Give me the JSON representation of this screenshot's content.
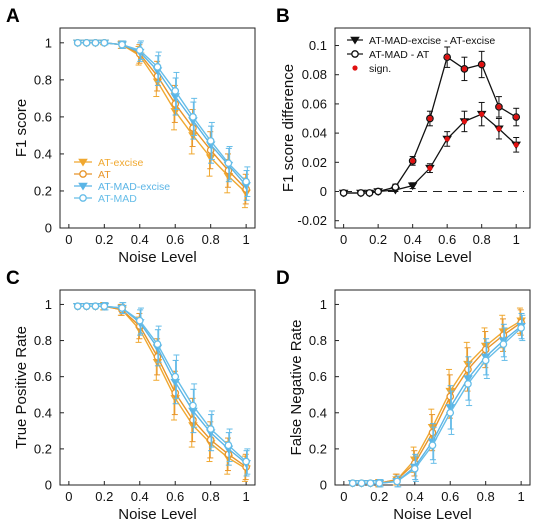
{
  "colors": {
    "excise": "#f0a830",
    "at": "#e8952a",
    "madexcise": "#5bb5e6",
    "mad": "#66bde8",
    "diff": "#111111",
    "sign": "#e01010"
  },
  "chart_data": [
    {
      "panel": "A",
      "type": "line",
      "xlabel": "Noise Level",
      "ylabel": "F1 score",
      "xlim": [
        -0.05,
        1.05
      ],
      "ylim": [
        0,
        1.08
      ],
      "xticks": [
        "0",
        "0.2",
        "0.4",
        "0.6",
        "0.8",
        "1"
      ],
      "yticks": [
        "0",
        "0.2",
        "0.4",
        "0.6",
        "0.8",
        "1"
      ],
      "legend_position": "bottom-left",
      "x": [
        0.05,
        0.1,
        0.15,
        0.2,
        0.3,
        0.4,
        0.5,
        0.6,
        0.7,
        0.8,
        0.9,
        1.0
      ],
      "series": [
        {
          "name": "AT-excise",
          "marker": "triangle-down",
          "values": [
            1.0,
            1.0,
            1.0,
            1.0,
            0.99,
            0.93,
            0.79,
            0.63,
            0.5,
            0.38,
            0.28,
            0.19
          ],
          "err": [
            0,
            0,
            0,
            0.01,
            0.02,
            0.05,
            0.08,
            0.1,
            0.1,
            0.1,
            0.09,
            0.08
          ]
        },
        {
          "name": "AT",
          "marker": "circle",
          "values": [
            1.0,
            1.0,
            1.0,
            1.0,
            0.99,
            0.94,
            0.82,
            0.67,
            0.54,
            0.42,
            0.31,
            0.21
          ],
          "err": [
            0,
            0,
            0,
            0.01,
            0.02,
            0.05,
            0.08,
            0.1,
            0.1,
            0.1,
            0.09,
            0.08
          ]
        },
        {
          "name": "AT-MAD-excise",
          "marker": "triangle-down",
          "values": [
            1.0,
            1.0,
            1.0,
            1.0,
            0.99,
            0.95,
            0.85,
            0.71,
            0.58,
            0.45,
            0.34,
            0.23
          ],
          "err": [
            0,
            0,
            0,
            0.01,
            0.02,
            0.05,
            0.08,
            0.1,
            0.1,
            0.1,
            0.09,
            0.08
          ]
        },
        {
          "name": "AT-MAD",
          "marker": "circle",
          "values": [
            1.0,
            1.0,
            1.0,
            1.0,
            0.99,
            0.96,
            0.87,
            0.74,
            0.6,
            0.47,
            0.35,
            0.25
          ],
          "err": [
            0,
            0,
            0,
            0.01,
            0.02,
            0.05,
            0.08,
            0.1,
            0.1,
            0.1,
            0.09,
            0.08
          ]
        }
      ]
    },
    {
      "panel": "B",
      "type": "line",
      "xlabel": "Noise Level",
      "ylabel": "F1 score difference",
      "xlim": [
        -0.05,
        1.08
      ],
      "ylim": [
        -0.025,
        0.112
      ],
      "xticks": [
        "0",
        "0.2",
        "0.4",
        "0.6",
        "0.8",
        "1"
      ],
      "yticks": [
        "-0.02",
        "0",
        "0.02",
        "0.04",
        "0.06",
        "0.08",
        "0.1"
      ],
      "legend_position": "top-right",
      "reference_line": 0,
      "x": [
        0.0,
        0.1,
        0.15,
        0.2,
        0.3,
        0.4,
        0.5,
        0.6,
        0.7,
        0.8,
        0.9,
        1.0
      ],
      "series": [
        {
          "name": "AT-MAD-excise - AT-excise",
          "marker": "triangle-down",
          "values": [
            -0.001,
            -0.001,
            -0.001,
            0.0,
            0.001,
            0.004,
            0.016,
            0.036,
            0.048,
            0.053,
            0.043,
            0.032
          ],
          "err": [
            0.001,
            0.001,
            0.001,
            0.001,
            0.001,
            0.002,
            0.003,
            0.005,
            0.007,
            0.008,
            0.007,
            0.005
          ],
          "significant": [
            false,
            false,
            false,
            false,
            false,
            false,
            true,
            true,
            true,
            true,
            true,
            true
          ]
        },
        {
          "name": "AT-MAD - AT",
          "marker": "circle",
          "values": [
            -0.001,
            -0.001,
            -0.001,
            0.0,
            0.003,
            0.021,
            0.05,
            0.092,
            0.084,
            0.087,
            0.058,
            0.051
          ],
          "err": [
            0.001,
            0.001,
            0.001,
            0.001,
            0.002,
            0.003,
            0.005,
            0.007,
            0.008,
            0.009,
            0.007,
            0.006
          ],
          "significant": [
            false,
            false,
            false,
            false,
            false,
            true,
            true,
            true,
            true,
            true,
            true,
            true
          ]
        }
      ],
      "significance_label": "sign."
    },
    {
      "panel": "C",
      "type": "line",
      "xlabel": "Noise Level",
      "ylabel": "True Positive Rate",
      "xlim": [
        -0.05,
        1.05
      ],
      "ylim": [
        0,
        1.08
      ],
      "xticks": [
        "0",
        "0.2",
        "0.4",
        "0.6",
        "0.8",
        "1"
      ],
      "yticks": [
        "0",
        "0.2",
        "0.4",
        "0.6",
        "0.8",
        "1"
      ],
      "x": [
        0.05,
        0.1,
        0.15,
        0.2,
        0.3,
        0.4,
        0.5,
        0.6,
        0.7,
        0.8,
        0.9,
        1.0
      ],
      "series": [
        {
          "name": "AT-excise",
          "marker": "triangle-down",
          "values": [
            0.99,
            0.99,
            0.99,
            0.99,
            0.97,
            0.86,
            0.68,
            0.48,
            0.33,
            0.23,
            0.15,
            0.09
          ],
          "err": [
            0,
            0,
            0,
            0.02,
            0.03,
            0.07,
            0.1,
            0.12,
            0.12,
            0.1,
            0.09,
            0.07
          ]
        },
        {
          "name": "AT",
          "marker": "circle",
          "values": [
            0.99,
            0.99,
            0.99,
            0.99,
            0.97,
            0.88,
            0.71,
            0.51,
            0.36,
            0.25,
            0.17,
            0.1
          ],
          "err": [
            0,
            0,
            0,
            0.02,
            0.03,
            0.07,
            0.1,
            0.12,
            0.12,
            0.1,
            0.09,
            0.07
          ]
        },
        {
          "name": "AT-MAD-excise",
          "marker": "triangle-down",
          "values": [
            0.99,
            0.99,
            0.99,
            0.99,
            0.98,
            0.9,
            0.76,
            0.57,
            0.41,
            0.29,
            0.2,
            0.12
          ],
          "err": [
            0,
            0,
            0,
            0.02,
            0.03,
            0.07,
            0.1,
            0.12,
            0.12,
            0.1,
            0.09,
            0.07
          ]
        },
        {
          "name": "AT-MAD",
          "marker": "circle",
          "values": [
            0.99,
            0.99,
            0.99,
            0.99,
            0.98,
            0.91,
            0.78,
            0.6,
            0.44,
            0.31,
            0.22,
            0.13
          ],
          "err": [
            0,
            0,
            0,
            0.02,
            0.03,
            0.07,
            0.1,
            0.12,
            0.12,
            0.1,
            0.09,
            0.07
          ]
        }
      ]
    },
    {
      "panel": "D",
      "type": "line",
      "xlabel": "Noise Level",
      "ylabel": "False Negative Rate",
      "xlim": [
        -0.05,
        1.05
      ],
      "ylim": [
        0,
        1.08
      ],
      "xticks": [
        "0",
        "0.2",
        "0.4",
        "0.6",
        "0.8",
        "1"
      ],
      "yticks": [
        "0",
        "0.2",
        "0.4",
        "0.6",
        "0.8",
        "1"
      ],
      "x": [
        0.05,
        0.1,
        0.15,
        0.2,
        0.3,
        0.4,
        0.5,
        0.6,
        0.7,
        0.8,
        0.9,
        1.0
      ],
      "series": [
        {
          "name": "AT-excise",
          "marker": "triangle-down",
          "values": [
            0.01,
            0.01,
            0.01,
            0.01,
            0.03,
            0.14,
            0.32,
            0.52,
            0.67,
            0.77,
            0.85,
            0.91
          ],
          "err": [
            0,
            0,
            0,
            0.02,
            0.03,
            0.07,
            0.1,
            0.12,
            0.12,
            0.1,
            0.09,
            0.07
          ]
        },
        {
          "name": "AT",
          "marker": "circle",
          "values": [
            0.01,
            0.01,
            0.01,
            0.01,
            0.03,
            0.12,
            0.29,
            0.49,
            0.64,
            0.75,
            0.83,
            0.9
          ],
          "err": [
            0,
            0,
            0,
            0.02,
            0.03,
            0.07,
            0.1,
            0.12,
            0.12,
            0.1,
            0.09,
            0.07
          ]
        },
        {
          "name": "AT-MAD-excise",
          "marker": "triangle-down",
          "values": [
            0.01,
            0.01,
            0.01,
            0.01,
            0.02,
            0.1,
            0.24,
            0.43,
            0.59,
            0.71,
            0.8,
            0.88
          ],
          "err": [
            0,
            0,
            0,
            0.02,
            0.03,
            0.07,
            0.1,
            0.12,
            0.12,
            0.1,
            0.09,
            0.07
          ]
        },
        {
          "name": "AT-MAD",
          "marker": "circle",
          "values": [
            0.01,
            0.01,
            0.01,
            0.01,
            0.02,
            0.09,
            0.22,
            0.4,
            0.56,
            0.69,
            0.78,
            0.87
          ],
          "err": [
            0,
            0,
            0,
            0.02,
            0.03,
            0.07,
            0.1,
            0.12,
            0.12,
            0.1,
            0.09,
            0.07
          ]
        }
      ]
    }
  ]
}
